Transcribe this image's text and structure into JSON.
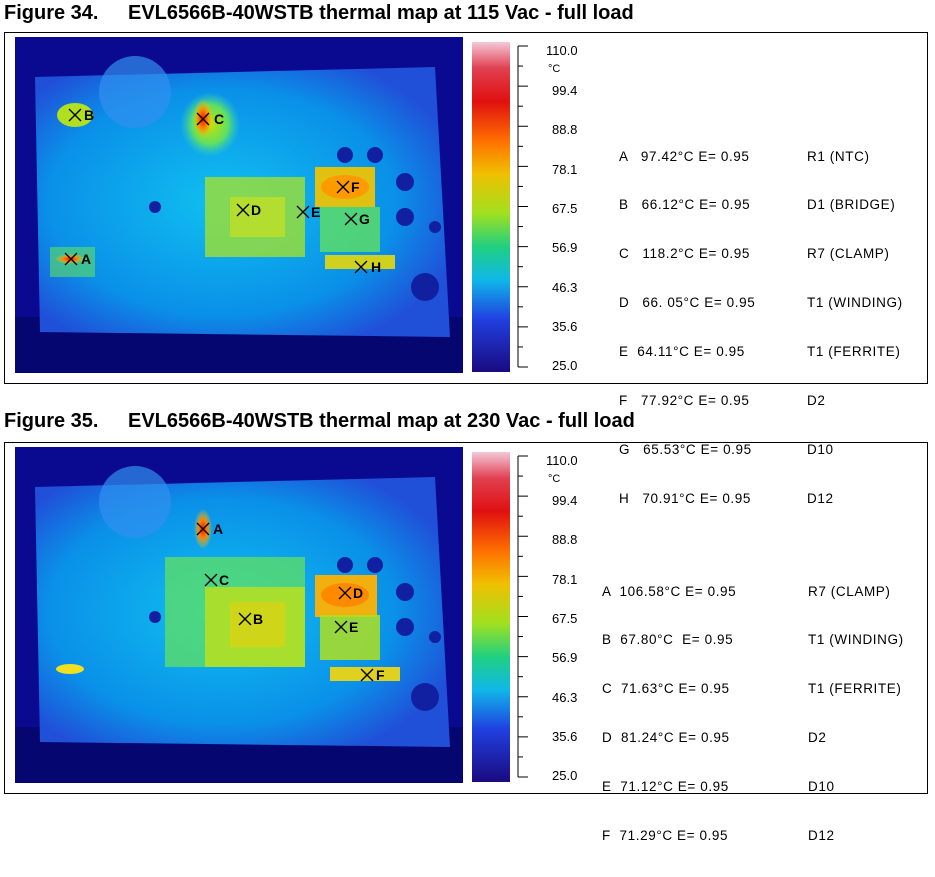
{
  "colors": {
    "scale_top": "#f4c8d8",
    "scale_bottom": "#1a0a80",
    "board_bg": "#0a0a90"
  },
  "figures": [
    {
      "number": "Figure 34.",
      "title": "EVL6566B-40WSTB thermal map at 115 Vac - full load",
      "scale": {
        "unit": "°C",
        "ticks": [
          "110.0",
          "99.4",
          "88.8",
          "78.1",
          "67.5",
          "56.9",
          "46.3",
          "35.6",
          "25.0"
        ]
      },
      "markers": [
        "B",
        "C",
        "D",
        "E",
        "F",
        "G",
        "A",
        "H"
      ],
      "readings": [
        {
          "text": "A   97.42°C E= 0.95",
          "part": "R1 (NTC)"
        },
        {
          "text": "B   66.12°C E= 0.95",
          "part": "D1 (BRIDGE)"
        },
        {
          "text": "C   118.2°C E= 0.95",
          "part": "R7 (CLAMP)"
        },
        {
          "text": "D   66. 05°C E= 0.95",
          "part": "T1 (WINDING)"
        },
        {
          "text": "E  64.11°C E= 0.95",
          "part": "T1 (FERRITE)"
        },
        {
          "text": "F   77.92°C E= 0.95",
          "part": "D2"
        },
        {
          "text": "G   65.53°C E= 0.95",
          "part": "D10"
        },
        {
          "text": "H   70.91°C E= 0.95",
          "part": "D12"
        }
      ]
    },
    {
      "number": "Figure 35.",
      "title": "EVL6566B-40WSTB thermal map at 230 Vac - full load",
      "scale": {
        "unit": "°C",
        "ticks": [
          "110.0",
          "99.4",
          "88.8",
          "78.1",
          "67.5",
          "56.9",
          "46.3",
          "35.6",
          "25.0"
        ]
      },
      "markers": [
        "A",
        "C",
        "B",
        "D",
        "E",
        "F"
      ],
      "readings": [
        {
          "text": "A  106.58°C E= 0.95",
          "part": "R7 (CLAMP)"
        },
        {
          "text": "B  67.80°C  E= 0.95",
          "part": "T1 (WINDING)"
        },
        {
          "text": "C  71.63°C E= 0.95",
          "part": "T1 (FERRITE)"
        },
        {
          "text": "D  81.24°C E= 0.95",
          "part": "D2"
        },
        {
          "text": "E  71.12°C E= 0.95",
          "part": "D10"
        },
        {
          "text": "F  71.29°C E= 0.95",
          "part": "D12"
        }
      ]
    }
  ]
}
